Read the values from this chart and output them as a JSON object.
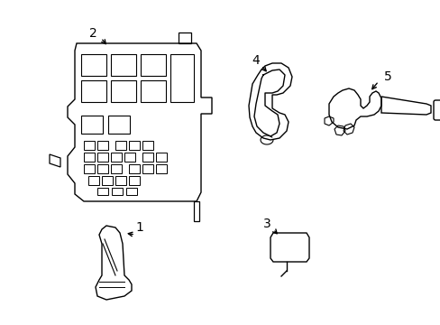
{
  "background_color": "#ffffff",
  "line_color": "#000000",
  "line_width": 1.0,
  "label_fontsize": 10,
  "fig_width": 4.89,
  "fig_height": 3.6,
  "dpi": 100
}
